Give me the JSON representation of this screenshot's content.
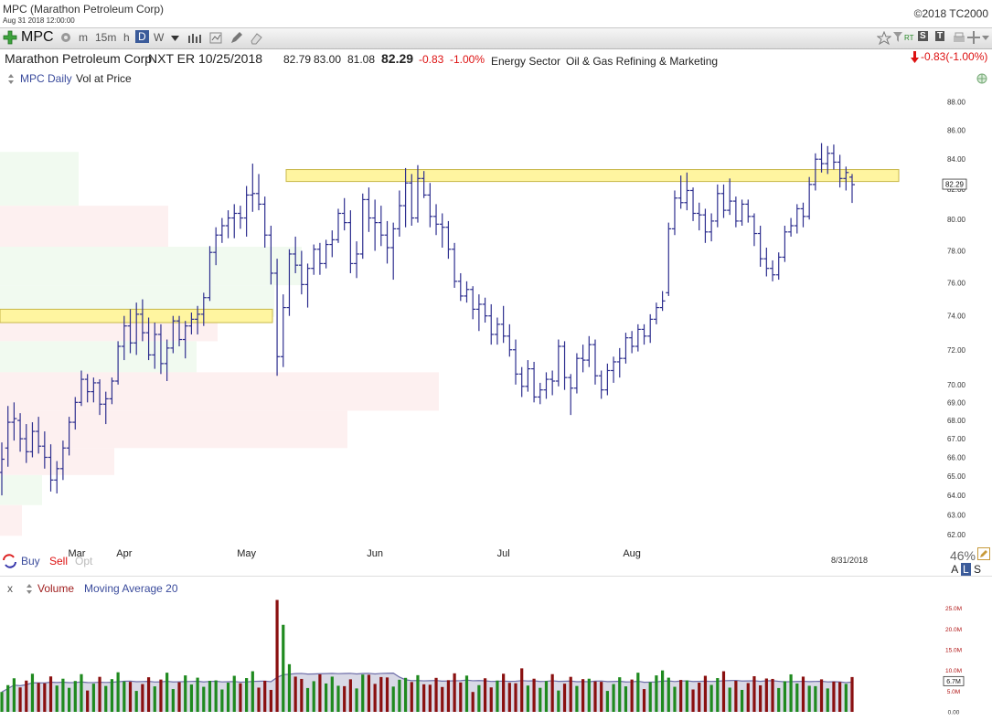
{
  "header": {
    "title": "MPC (Marathon Petroleum Corp)",
    "datetime": "Aug 31 2018 12:00:00",
    "copyright": "©2018 TC2000"
  },
  "toolbar": {
    "symbol": "MPC",
    "timeframes": [
      "m",
      "15m",
      "h",
      "D",
      "W"
    ],
    "active_timeframe": "D",
    "right_buttons": [
      "RT",
      "S",
      "T"
    ]
  },
  "quote": {
    "company": "Marathon Petroleum Corp",
    "next_earnings": "NXT ER 10/25/2018",
    "open": "82.79",
    "high": "83.00",
    "low": "81.08",
    "last": "82.29",
    "change": "-0.83",
    "change_pct": "-1.00%",
    "sector": "Energy Sector",
    "industry": "Oil & Gas Refining & Marketing",
    "change_summary": "-0.83(-1.00%)"
  },
  "price_panel": {
    "label": "MPC Daily",
    "indicator": "Vol at Price",
    "last_price_tag": "82.29",
    "date_label": "8/31/2018",
    "percent": "46%",
    "als": [
      "A",
      "L",
      "S"
    ],
    "trade_buttons": [
      "Buy",
      "Sell",
      "Opt"
    ]
  },
  "volume_panel": {
    "close_label": "x",
    "label": "Volume",
    "ma_label": "Moving Average 20",
    "ma_value_tag": "6.7M"
  },
  "colors": {
    "bar": "#2e2f8f",
    "zone": "#fff5a0",
    "zone_border": "#c8b84a",
    "vol_up": "#1f8a1f",
    "vol_down": "#8a1010",
    "ma_fill": "#d9d9e6",
    "ma_line": "#6d6da8"
  },
  "chart_data": [
    {
      "type": "ohlc",
      "series_name": "MPC Daily",
      "y_axis_scale": "log",
      "ylim": [
        61.5,
        89
      ],
      "y_ticks": [
        62,
        63,
        64,
        65,
        66,
        67,
        68,
        69,
        70,
        72,
        74,
        76,
        78,
        80,
        82,
        84,
        86,
        88
      ],
      "x_labels": [
        "Mar",
        "Apr",
        "May",
        "Jun",
        "Jul",
        "Aug"
      ],
      "resistance_zone": [
        82.5,
        83.3
      ],
      "support_zone": [
        73.6,
        74.4
      ],
      "ohlc": [
        [
          65.2,
          66.8,
          64.0,
          65.9
        ],
        [
          66.5,
          68.8,
          65.5,
          67.9
        ],
        [
          67.9,
          69.0,
          66.9,
          68.1
        ],
        [
          68.0,
          68.4,
          66.3,
          67.0
        ],
        [
          67.0,
          67.8,
          65.7,
          66.3
        ],
        [
          66.3,
          67.9,
          66.0,
          67.4
        ],
        [
          67.4,
          68.2,
          66.2,
          66.6
        ],
        [
          66.6,
          67.4,
          65.4,
          66.0
        ],
        [
          66.0,
          66.7,
          64.2,
          64.8
        ],
        [
          64.8,
          65.8,
          64.1,
          65.4
        ],
        [
          65.4,
          66.9,
          64.8,
          66.5
        ],
        [
          66.5,
          68.2,
          66.1,
          67.9
        ],
        [
          67.9,
          69.3,
          67.5,
          69.0
        ],
        [
          69.0,
          70.8,
          68.8,
          70.3
        ],
        [
          70.3,
          70.6,
          69.0,
          69.6
        ],
        [
          69.6,
          70.4,
          69.0,
          70.1
        ],
        [
          70.1,
          70.3,
          68.3,
          68.9
        ],
        [
          68.9,
          69.6,
          67.8,
          69.2
        ],
        [
          69.2,
          70.4,
          68.9,
          70.2
        ],
        [
          70.2,
          72.5,
          70.0,
          72.2
        ],
        [
          72.2,
          74.0,
          71.4,
          73.4
        ],
        [
          73.4,
          74.4,
          71.8,
          72.4
        ],
        [
          72.4,
          74.8,
          71.7,
          74.1
        ],
        [
          74.1,
          75.0,
          72.5,
          73.0
        ],
        [
          73.0,
          73.9,
          71.4,
          71.7
        ],
        [
          71.7,
          73.6,
          70.9,
          72.9
        ],
        [
          72.9,
          73.5,
          70.6,
          71.2
        ],
        [
          71.2,
          72.6,
          70.2,
          72.1
        ],
        [
          72.1,
          74.0,
          71.8,
          73.7
        ],
        [
          73.7,
          74.0,
          72.2,
          72.6
        ],
        [
          72.6,
          73.7,
          71.5,
          73.4
        ],
        [
          73.4,
          74.2,
          72.9,
          73.8
        ],
        [
          73.8,
          74.6,
          72.9,
          74.1
        ],
        [
          74.1,
          75.4,
          73.4,
          75.1
        ],
        [
          75.1,
          78.3,
          74.9,
          77.9
        ],
        [
          77.9,
          79.5,
          77.1,
          79.0
        ],
        [
          79.0,
          80.1,
          78.5,
          79.6
        ],
        [
          79.6,
          80.6,
          78.8,
          80.1
        ],
        [
          80.1,
          81.0,
          78.8,
          80.4
        ],
        [
          80.4,
          80.9,
          79.4,
          80.1
        ],
        [
          80.1,
          82.2,
          78.9,
          81.6
        ],
        [
          81.6,
          83.7,
          80.5,
          81.7
        ],
        [
          81.7,
          83.0,
          80.6,
          81.0
        ],
        [
          81.0,
          81.5,
          78.2,
          79.0
        ],
        [
          79.0,
          79.6,
          75.9,
          76.6
        ],
        [
          76.6,
          77.5,
          70.5,
          71.6
        ],
        [
          71.6,
          75.3,
          71.0,
          74.5
        ],
        [
          74.5,
          78.1,
          74.0,
          77.8
        ],
        [
          77.8,
          78.9,
          76.6,
          77.1
        ],
        [
          77.1,
          78.0,
          75.3,
          75.9
        ],
        [
          75.9,
          77.2,
          74.5,
          76.9
        ],
        [
          76.9,
          78.4,
          76.5,
          78.1
        ],
        [
          78.1,
          78.5,
          76.5,
          77.2
        ],
        [
          77.2,
          78.7,
          76.9,
          78.4
        ],
        [
          78.4,
          79.3,
          77.6,
          78.7
        ],
        [
          78.7,
          80.7,
          78.5,
          80.4
        ],
        [
          80.4,
          81.4,
          79.3,
          79.8
        ],
        [
          79.8,
          80.6,
          76.6,
          77.2
        ],
        [
          77.2,
          78.6,
          76.3,
          77.8
        ],
        [
          77.8,
          81.7,
          77.5,
          81.3
        ],
        [
          81.3,
          82.1,
          79.2,
          80.1
        ],
        [
          80.1,
          81.3,
          78.0,
          79.8
        ],
        [
          79.8,
          80.9,
          78.3,
          79.0
        ],
        [
          79.0,
          79.9,
          77.2,
          78.2
        ],
        [
          78.2,
          79.8,
          76.2,
          79.4
        ],
        [
          79.4,
          81.9,
          78.9,
          80.9
        ],
        [
          80.9,
          83.4,
          79.5,
          82.4
        ],
        [
          82.4,
          83.0,
          79.6,
          80.1
        ],
        [
          80.1,
          83.6,
          79.8,
          82.7
        ],
        [
          82.7,
          83.2,
          81.4,
          81.6
        ],
        [
          81.6,
          82.4,
          79.5,
          80.2
        ],
        [
          80.2,
          81.0,
          79.0,
          79.7
        ],
        [
          79.7,
          80.4,
          78.2,
          79.5
        ],
        [
          79.5,
          79.9,
          77.5,
          78.1
        ],
        [
          78.1,
          78.5,
          75.7,
          76.1
        ],
        [
          76.1,
          76.6,
          74.9,
          75.2
        ],
        [
          75.2,
          76.1,
          74.8,
          75.6
        ],
        [
          75.6,
          75.8,
          73.8,
          74.4
        ],
        [
          74.4,
          75.3,
          73.1,
          74.7
        ],
        [
          74.7,
          75.1,
          73.6,
          74.0
        ],
        [
          74.0,
          74.7,
          72.3,
          72.9
        ],
        [
          72.9,
          73.9,
          72.3,
          73.5
        ],
        [
          73.5,
          74.6,
          72.4,
          72.8
        ],
        [
          72.8,
          73.5,
          71.6,
          72.0
        ],
        [
          72.0,
          72.6,
          70.0,
          70.6
        ],
        [
          70.6,
          71.0,
          69.3,
          69.9
        ],
        [
          69.9,
          71.4,
          69.6,
          70.9
        ],
        [
          70.9,
          71.3,
          69.0,
          69.3
        ],
        [
          69.3,
          70.1,
          68.9,
          69.7
        ],
        [
          69.7,
          70.7,
          69.2,
          70.3
        ],
        [
          70.3,
          70.8,
          69.4,
          70.2
        ],
        [
          70.2,
          72.6,
          69.9,
          72.2
        ],
        [
          72.2,
          72.5,
          69.7,
          70.4
        ],
        [
          70.4,
          70.6,
          68.3,
          69.8
        ],
        [
          69.8,
          71.8,
          69.5,
          71.5
        ],
        [
          71.5,
          72.3,
          70.7,
          71.4
        ],
        [
          71.4,
          72.8,
          71.0,
          72.3
        ],
        [
          72.3,
          72.6,
          70.0,
          70.5
        ],
        [
          70.5,
          70.8,
          69.2,
          69.7
        ],
        [
          69.7,
          71.2,
          69.4,
          70.8
        ],
        [
          70.8,
          71.6,
          70.1,
          71.3
        ],
        [
          71.3,
          72.1,
          70.4,
          71.5
        ],
        [
          71.5,
          73.0,
          71.2,
          72.7
        ],
        [
          72.7,
          73.1,
          71.8,
          72.2
        ],
        [
          72.2,
          73.5,
          71.9,
          73.2
        ],
        [
          73.2,
          73.5,
          72.3,
          72.8
        ],
        [
          72.8,
          74.1,
          72.4,
          73.8
        ],
        [
          73.8,
          74.8,
          73.5,
          74.5
        ],
        [
          74.5,
          75.5,
          74.3,
          74.9
        ],
        [
          75.4,
          79.8,
          75.2,
          79.4
        ],
        [
          79.4,
          81.9,
          79.0,
          81.4
        ],
        [
          81.4,
          82.9,
          80.7,
          81.1
        ],
        [
          81.1,
          83.1,
          80.6,
          81.9
        ],
        [
          81.9,
          82.1,
          79.9,
          80.4
        ],
        [
          80.4,
          81.1,
          79.3,
          80.3
        ],
        [
          80.3,
          80.7,
          78.5,
          79.2
        ],
        [
          79.2,
          80.4,
          78.6,
          79.9
        ],
        [
          79.9,
          82.3,
          79.5,
          81.7
        ],
        [
          81.7,
          82.3,
          80.1,
          80.6
        ],
        [
          80.6,
          82.7,
          80.3,
          81.2
        ],
        [
          81.2,
          81.5,
          79.5,
          79.9
        ],
        [
          79.9,
          81.3,
          79.6,
          81.0
        ],
        [
          81.0,
          81.3,
          79.8,
          80.2
        ],
        [
          80.2,
          80.4,
          78.3,
          79.1
        ],
        [
          79.1,
          79.6,
          77.0,
          77.5
        ],
        [
          77.5,
          78.2,
          76.4,
          76.9
        ],
        [
          76.9,
          77.4,
          76.1,
          76.5
        ],
        [
          76.5,
          77.9,
          76.2,
          77.6
        ],
        [
          77.6,
          79.6,
          77.3,
          79.2
        ],
        [
          79.2,
          80.1,
          78.9,
          79.6
        ],
        [
          79.6,
          81.0,
          79.1,
          80.7
        ],
        [
          80.7,
          81.1,
          79.5,
          80.2
        ],
        [
          80.2,
          82.8,
          80.0,
          82.3
        ],
        [
          82.3,
          84.4,
          81.9,
          84.0
        ],
        [
          84.0,
          85.1,
          83.1,
          83.7
        ],
        [
          83.7,
          84.9,
          83.0,
          84.4
        ],
        [
          84.4,
          85.0,
          83.3,
          83.8
        ],
        [
          83.8,
          84.3,
          82.1,
          82.7
        ],
        [
          82.7,
          83.5,
          81.9,
          83.1
        ],
        [
          82.79,
          83.0,
          81.08,
          82.29
        ]
      ]
    },
    {
      "type": "volume_bar",
      "series_name": "Volume",
      "unit": "M",
      "ylim": [
        0,
        28
      ],
      "y_ticks": [
        "0.00",
        "5.0M",
        "10.0M",
        "15.0M",
        "20.0M",
        "25.0M"
      ],
      "moving_average_period": 20
    }
  ]
}
